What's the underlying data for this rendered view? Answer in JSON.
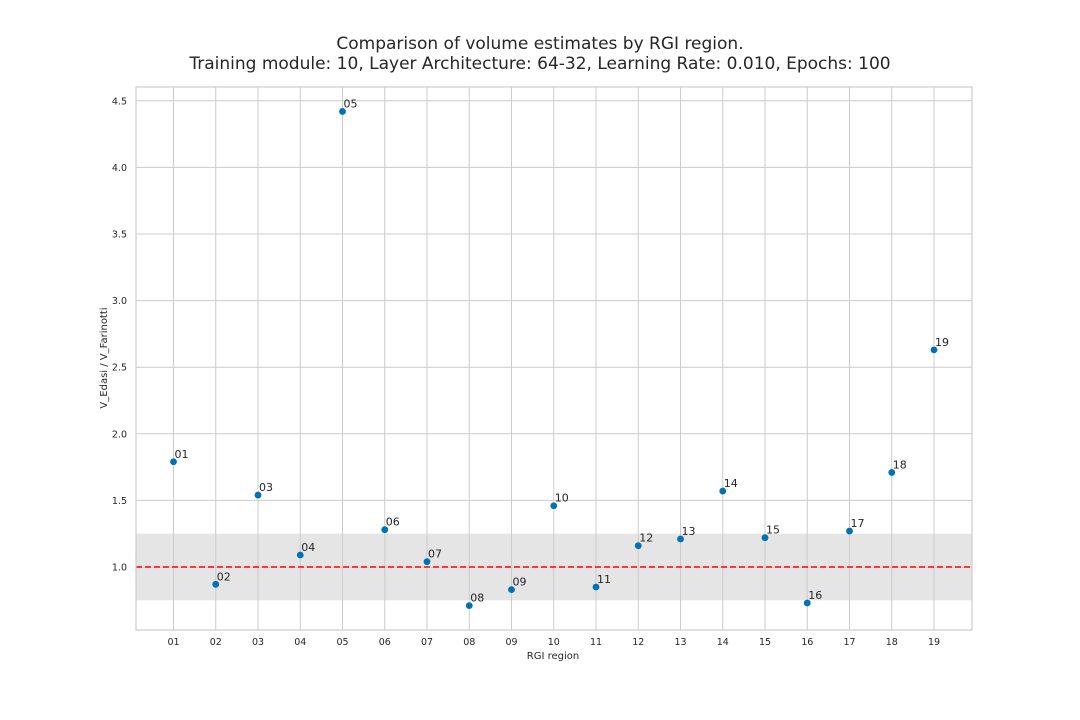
{
  "chart_data": {
    "type": "scatter",
    "title": "Comparison of volume estimates by RGI region.",
    "subtitle": "Training module: 10, Layer Architecture: 64-32, Learning Rate: 0.010, Epochs: 100",
    "xlabel": "RGI region",
    "ylabel": "V_Edasi / V_Farinotti",
    "categories": [
      "01",
      "02",
      "03",
      "04",
      "05",
      "06",
      "07",
      "08",
      "09",
      "10",
      "11",
      "12",
      "13",
      "14",
      "15",
      "16",
      "17",
      "18",
      "19"
    ],
    "yticks": [
      "1.0",
      "1.5",
      "2.0",
      "2.5",
      "3.0",
      "3.5",
      "4.0",
      "4.5"
    ],
    "ylim": [
      0.5,
      4.6
    ],
    "series": [
      {
        "values": [
          1.79,
          0.87,
          1.54,
          1.09,
          4.42,
          1.28,
          1.04,
          0.71,
          0.83,
          1.46,
          0.85,
          1.16,
          1.21,
          1.57,
          1.22,
          0.73,
          1.27,
          1.71,
          2.63
        ]
      }
    ],
    "reference_line": {
      "y": 1.0,
      "color": "#ff0000",
      "style": "dashed"
    },
    "band": {
      "y0": 0.75,
      "y1": 1.25,
      "color": "#e5e5e5"
    },
    "grid": true,
    "point_color": "#0072b2",
    "frame_color": "#cccccc",
    "grid_color": "#cccccc"
  }
}
